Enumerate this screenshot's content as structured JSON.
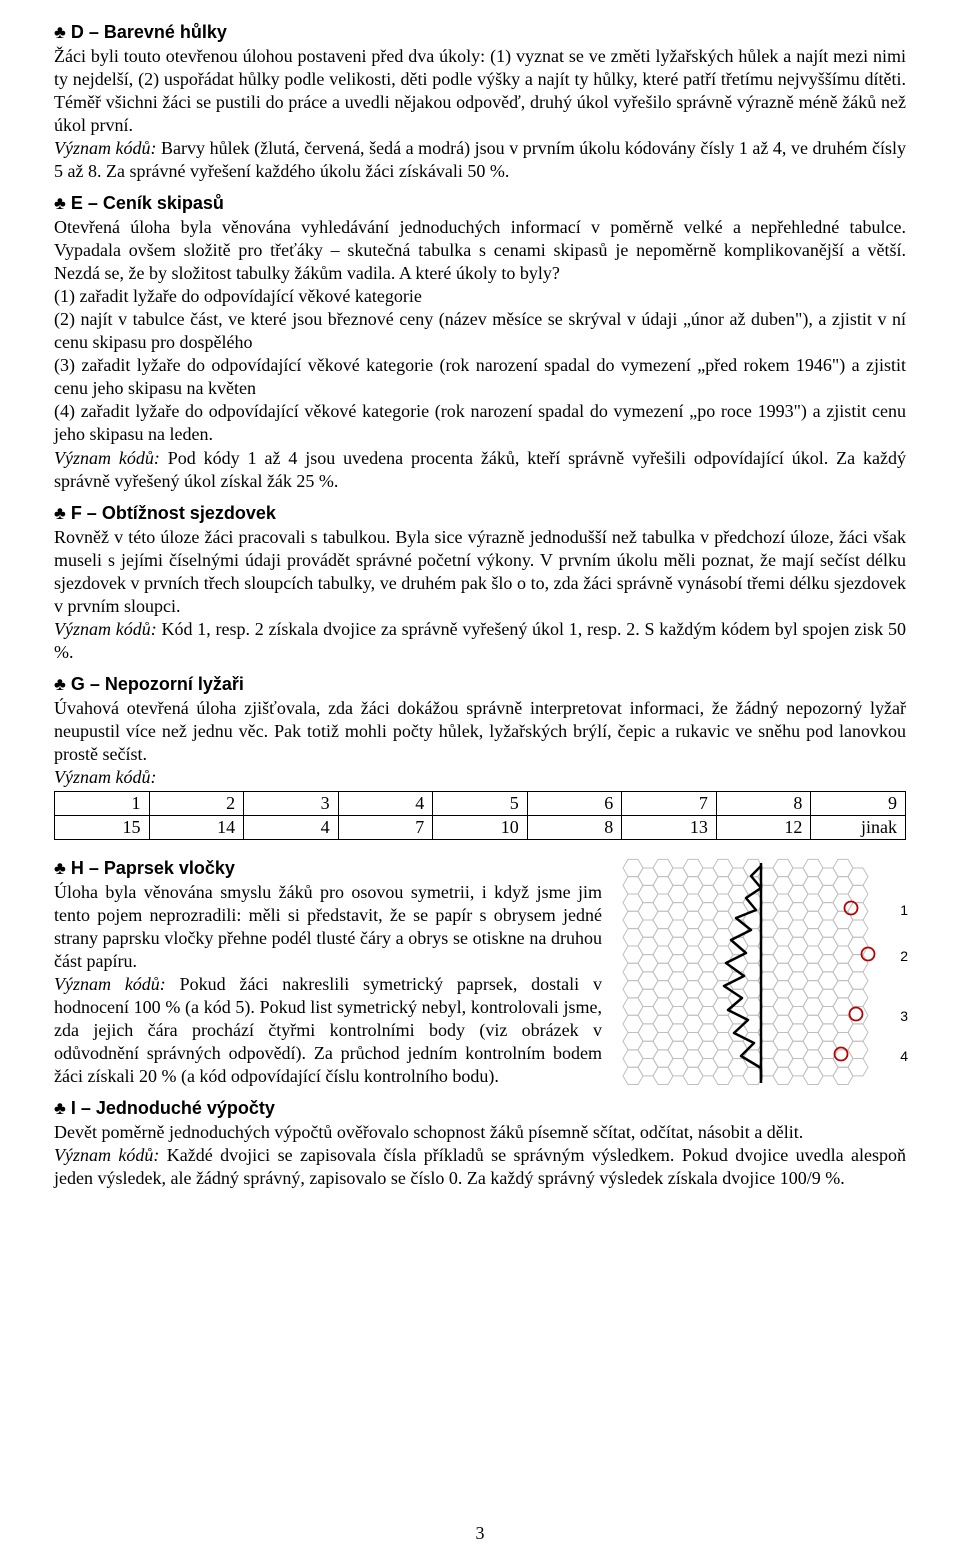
{
  "page_number": "3",
  "sections": {
    "D": {
      "title": "♣ D – Barevné hůlky",
      "p1": "Žáci byli touto otevřenou úlohou postaveni před dva úkoly: (1) vyznat se ve změti lyžařských hůlek a najít mezi nimi ty nejdelší, (2) uspořádat hůlky podle velikosti, děti podle výšky a najít ty hůlky, které patří třetímu nejvyššímu dítěti. Téměř všichni žáci se pustili do práce a uvedli nějakou odpověď, druhý úkol vyřešilo správně výrazně méně žáků než úkol první.",
      "meaning": "Význam kódů: ",
      "p2": "Barvy hůlek (žlutá, červená, šedá a modrá) jsou v prvním úkolu kódovány čísly 1 až 4, ve druhém čísly 5 až 8. Za správné vyřešení každého úkolu žáci získávali 50 %."
    },
    "E": {
      "title": "♣ E – Ceník skipasů",
      "p1": "Otevřená úloha byla věnována vyhledávání jednoduchých informací v poměrně velké a nepřehledné tabulce. Vypadala ovšem složitě pro třeťáky – skutečná tabulka s cenami skipasů je nepoměrně komplikovanější a větší. Nezdá se, že by složitost tabulky žákům vadila. A které úkoly to byly?",
      "l1": "(1) zařadit lyžaře do odpovídající věkové kategorie",
      "l2": "(2) najít v tabulce část, ve které jsou březnové ceny (název měsíce se skrýval v údaji „únor až duben\"), a zjistit v ní cenu skipasu pro dospělého",
      "l3": "(3) zařadit lyžaře do odpovídající věkové kategorie (rok narození spadal do vymezení „před rokem 1946\") a zjistit cenu jeho skipasu na květen",
      "l4": "(4) zařadit lyžaře do odpovídající věkové kategorie (rok narození spadal do vymezení „po roce 1993\") a zjistit cenu jeho skipasu na leden.",
      "meaning": "Význam kódů: ",
      "p2": "Pod kódy 1 až 4 jsou uvedena procenta žáků, kteří správně vyřešili odpovídající úkol. Za každý správně vyřešený úkol získal žák 25 %."
    },
    "F": {
      "title": "♣ F – Obtížnost sjezdovek",
      "p1": "Rovněž v této úloze žáci pracovali s tabulkou. Byla sice výrazně jednodušší než tabulka v předchozí úloze, žáci však museli s jejími číselnými údaji provádět správné početní výkony. V prvním úkolu měli poznat, že mají sečíst délku sjezdovek v prvních třech sloupcích tabulky, ve druhém pak šlo o to, zda žáci správně vynásobí třemi délku sjezdovek v prvním sloupci.",
      "meaning": "Význam kódů: ",
      "p2": "Kód 1, resp. 2 získala dvojice za správně vyřešený úkol 1, resp. 2. S každým kódem byl spojen zisk 50 %."
    },
    "G": {
      "title": "♣ G – Nepozorní lyžaři",
      "p1": "Úvahová otevřená úloha zjišťovala, zda žáci dokážou správně interpretovat informaci, že žádný nepozorný lyžař neupustil více než jednu věc. Pak totiž mohli počty hůlek, lyžařských brýlí, čepic a rukavic ve sněhu pod lanovkou prostě sečíst.",
      "meaning": "Význam kódů:",
      "table": {
        "row1": [
          "1",
          "2",
          "3",
          "4",
          "5",
          "6",
          "7",
          "8",
          "9"
        ],
        "row2": [
          "15",
          "14",
          "4",
          "7",
          "10",
          "8",
          "13",
          "12",
          "jinak"
        ]
      }
    },
    "H": {
      "title": "♣ H – Paprsek vločky",
      "p1": "Úloha byla věnována smyslu žáků pro osovou symetrii, i když jsme jim tento pojem neprozradili: měli si představit, že se papír s obrysem jedné strany paprsku vločky přehne podél tlusté čáry a obrys se otiskne na druhou část papíru.",
      "meaning": "Význam kódů: ",
      "p2": "Pokud žáci nakreslili symetrický paprsek, dostali v hodnocení 100 % (a kód 5). Pokud list symetrický nebyl, kontrolovali jsme, zda jejich čára prochází čtyřmi kontrolními body (viz obrázek v odůvodnění správných odpovědí). Za průchod jedním kontrolním bodem žáci získali 20 % (a kód odpovídající číslu kontrolního bodu).",
      "hex": {
        "labels": [
          "1",
          "2",
          "3",
          "4"
        ],
        "circle_color": "#b70000",
        "grid_color": "#bfbfbf",
        "path_color": "#000000"
      }
    },
    "I": {
      "title": "♣ I – Jednoduché výpočty",
      "p1": "Devět poměrně jednoduchých výpočtů ověřovalo schopnost žáků písemně sčítat, odčítat, násobit a dělit.",
      "meaning": "Význam kódů: ",
      "p2": "Každé dvojici se zapisovala čísla příkladů se správným výsledkem. Pokud dvojice uvedla alespoň jeden výsledek, ale žádný správný, zapisovalo se číslo 0. Za každý správný výsledek získala dvojice 100/9 %."
    }
  }
}
